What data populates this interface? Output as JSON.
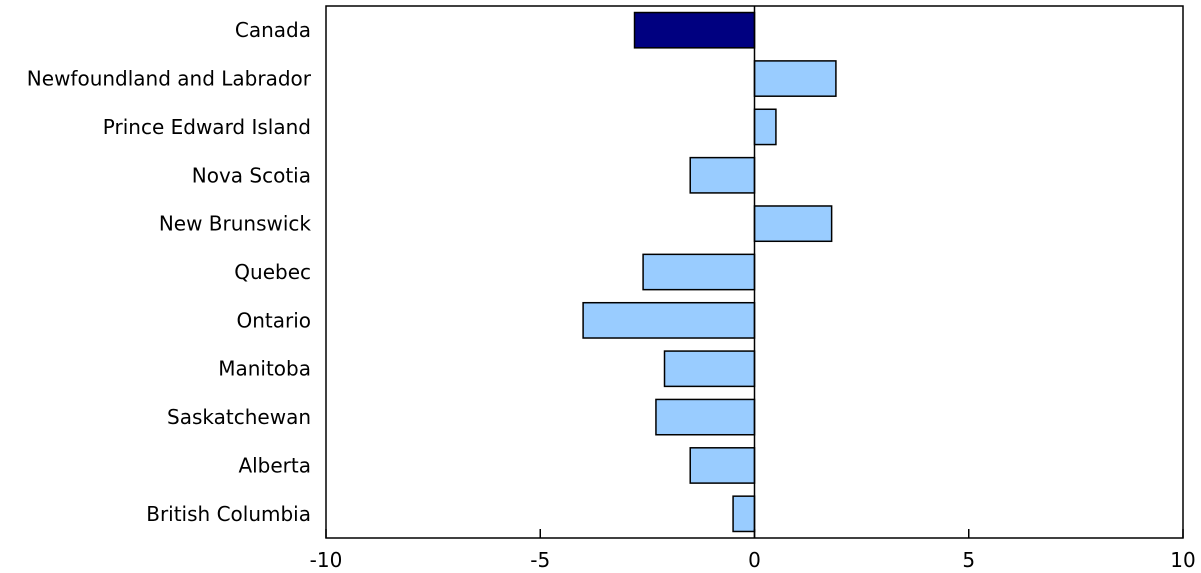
{
  "chart_data": {
    "type": "bar",
    "orientation": "horizontal",
    "title": "",
    "xlabel": "",
    "ylabel": "",
    "categories": [
      "Canada",
      "Newfoundland and Labrador",
      "Prince Edward Island",
      "Nova Scotia",
      "New Brunswick",
      "Quebec",
      "Ontario",
      "Manitoba",
      "Saskatchewan",
      "Alberta",
      "British Columbia"
    ],
    "values": [
      -2.8,
      1.9,
      0.5,
      -1.5,
      1.8,
      -2.6,
      -4.0,
      -2.1,
      -2.3,
      -1.5,
      -0.5
    ],
    "xlim": [
      -10,
      10
    ],
    "xticks": [
      -10,
      -5,
      0,
      5,
      10
    ],
    "xtick_labels": [
      "-10",
      "-5",
      "0",
      "5",
      "10"
    ],
    "grid": false,
    "legend": "none",
    "colors": {
      "highlight": "#000080",
      "bar": "#99ccff",
      "outline": "#000000"
    },
    "highlight_category": "Canada"
  }
}
